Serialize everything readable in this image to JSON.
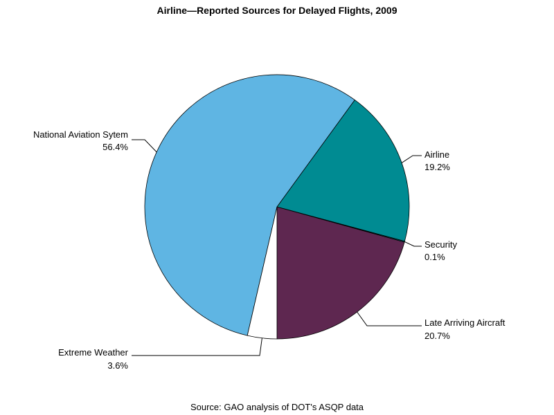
{
  "chart_data": {
    "type": "pie",
    "title": "Airline—Reported Sources for Delayed Flights, 2009",
    "source": "Source: GAO analysis of DOT's ASQP data",
    "slices": [
      {
        "label": "National Aviation Sytem",
        "value": 56.4,
        "value_label": "56.4%",
        "color": "#5fb5e3"
      },
      {
        "label": "Airline",
        "value": 19.2,
        "value_label": "19.2%",
        "color": "#008b92"
      },
      {
        "label": "Security",
        "value": 0.1,
        "value_label": "0.1%",
        "color": "#008b92"
      },
      {
        "label": "Late Arriving Aircraft",
        "value": 20.7,
        "value_label": "20.7%",
        "color": "#5e2750"
      },
      {
        "label": "Extreme Weather",
        "value": 3.6,
        "value_label": "3.6%",
        "color": "#ffffff"
      }
    ]
  }
}
